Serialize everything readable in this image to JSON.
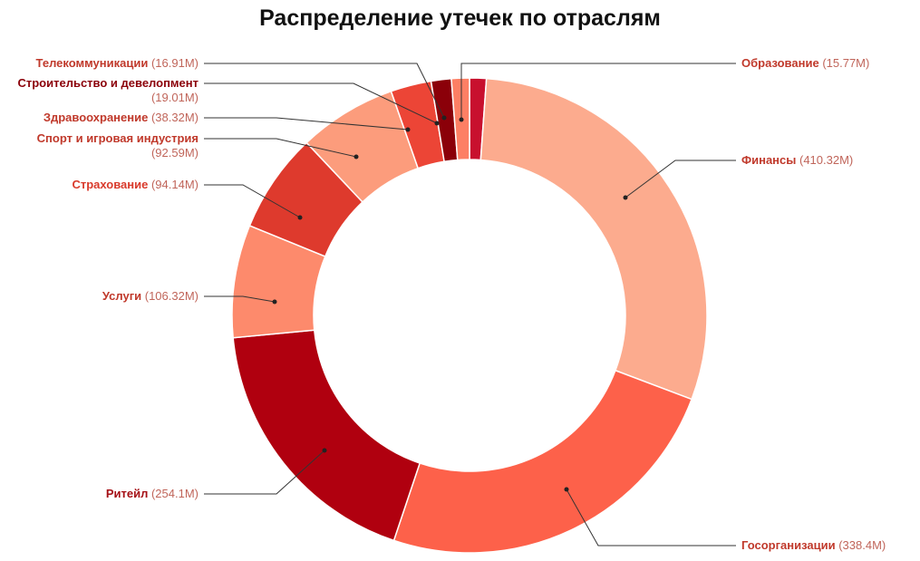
{
  "chart_data": {
    "type": "pie",
    "donut": true,
    "title": "Распределение утечек по отраслям",
    "slices": [
      {
        "label": "Образование",
        "value_text": "(15.77M)",
        "value": 15.77,
        "color": "#c8102e",
        "label_color": "#c0392b"
      },
      {
        "label": "Финансы",
        "value_text": "(410.32M)",
        "value": 410.32,
        "color": "#fcab8e",
        "label_color": "#c0392b"
      },
      {
        "label": "Госорганизации",
        "value_text": "(338.4M)",
        "value": 338.4,
        "color": "#fd614a",
        "label_color": "#c0392b"
      },
      {
        "label": "Ритейл",
        "value_text": "(254.1M)",
        "value": 254.1,
        "color": "#b0000f",
        "label_color": "#a50f15"
      },
      {
        "label": "Услуги",
        "value_text": "(106.32M)",
        "value": 106.32,
        "color": "#fd8a6c",
        "label_color": "#c0392b"
      },
      {
        "label": "Страхование",
        "value_text": "(94.14M)",
        "value": 94.14,
        "color": "#de3a2d",
        "label_color": "#d93a2b"
      },
      {
        "label": "Спорт и игровая индустрия",
        "value_text": "(92.59M)",
        "value": 92.59,
        "color": "#fc9c7c",
        "label_color": "#c0392b"
      },
      {
        "label": "Здравоохранение",
        "value_text": "(38.32M)",
        "value": 38.32,
        "color": "#ec4536",
        "label_color": "#c0392b"
      },
      {
        "label": "Строительство и девелопмент",
        "value_text": "(19.01M)",
        "value": 19.01,
        "color": "#8b0009",
        "label_color": "#8b0009"
      },
      {
        "label": "Телекоммуникации",
        "value_text": "(16.91M)",
        "value": 16.91,
        "color": "#fd7f64",
        "label_color": "#c0392b"
      }
    ]
  }
}
